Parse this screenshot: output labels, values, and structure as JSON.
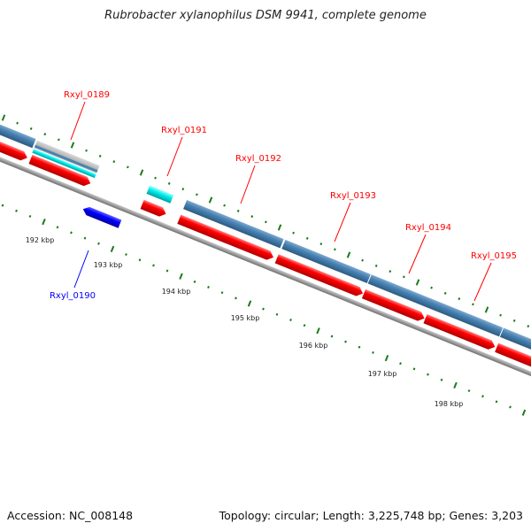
{
  "title": "Rubrobacter xylanophilus DSM 9941, complete genome",
  "footer": {
    "accession": "Accession: NC_008148",
    "summary": "Topology: circular; Length: 3,225,748 bp; Genes: 3,203"
  },
  "colors": {
    "forward_cds": "#ff0000",
    "reverse_cds": "#0000ff",
    "gene_band": "#4682b4",
    "rna": "#00e5e5",
    "backbone": "#888888",
    "ticks": "#1a7a1a"
  },
  "gene_labels": [
    {
      "name": "Rxyl_0189",
      "color": "#ff0000"
    },
    {
      "name": "Rxyl_0190",
      "color": "#0000ff"
    },
    {
      "name": "Rxyl_0191",
      "color": "#ff0000"
    },
    {
      "name": "Rxyl_0192",
      "color": "#ff0000"
    },
    {
      "name": "Rxyl_0193",
      "color": "#ff0000"
    },
    {
      "name": "Rxyl_0194",
      "color": "#ff0000"
    },
    {
      "name": "Rxyl_0195",
      "color": "#ff0000"
    }
  ],
  "ruler": [
    "192 kbp",
    "193 kbp",
    "194 kbp",
    "195 kbp",
    "196 kbp",
    "197 kbp",
    "198 kbp"
  ]
}
